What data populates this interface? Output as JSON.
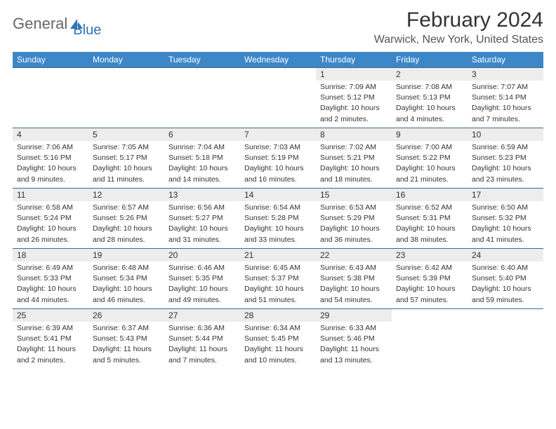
{
  "brand": {
    "part1": "General",
    "part2": "Blue"
  },
  "title": "February 2024",
  "location": "Warwick, New York, United States",
  "colors": {
    "header_bg": "#3d87c9",
    "header_text": "#ffffff",
    "daynum_bg": "#ededed",
    "row_border": "#3d6a94",
    "text": "#333333",
    "logo_gray": "#666666",
    "logo_blue": "#2f72b8",
    "background": "#ffffff"
  },
  "fonts": {
    "title_size_pt": 22,
    "location_size_pt": 12,
    "header_size_pt": 9,
    "daynum_size_pt": 9,
    "info_size_pt": 8
  },
  "weekdays": [
    "Sunday",
    "Monday",
    "Tuesday",
    "Wednesday",
    "Thursday",
    "Friday",
    "Saturday"
  ],
  "weeks": [
    [
      {
        "day": "",
        "sunrise": "",
        "sunset": "",
        "daylight1": "",
        "daylight2": ""
      },
      {
        "day": "",
        "sunrise": "",
        "sunset": "",
        "daylight1": "",
        "daylight2": ""
      },
      {
        "day": "",
        "sunrise": "",
        "sunset": "",
        "daylight1": "",
        "daylight2": ""
      },
      {
        "day": "",
        "sunrise": "",
        "sunset": "",
        "daylight1": "",
        "daylight2": ""
      },
      {
        "day": "1",
        "sunrise": "Sunrise: 7:09 AM",
        "sunset": "Sunset: 5:12 PM",
        "daylight1": "Daylight: 10 hours",
        "daylight2": "and 2 minutes."
      },
      {
        "day": "2",
        "sunrise": "Sunrise: 7:08 AM",
        "sunset": "Sunset: 5:13 PM",
        "daylight1": "Daylight: 10 hours",
        "daylight2": "and 4 minutes."
      },
      {
        "day": "3",
        "sunrise": "Sunrise: 7:07 AM",
        "sunset": "Sunset: 5:14 PM",
        "daylight1": "Daylight: 10 hours",
        "daylight2": "and 7 minutes."
      }
    ],
    [
      {
        "day": "4",
        "sunrise": "Sunrise: 7:06 AM",
        "sunset": "Sunset: 5:16 PM",
        "daylight1": "Daylight: 10 hours",
        "daylight2": "and 9 minutes."
      },
      {
        "day": "5",
        "sunrise": "Sunrise: 7:05 AM",
        "sunset": "Sunset: 5:17 PM",
        "daylight1": "Daylight: 10 hours",
        "daylight2": "and 11 minutes."
      },
      {
        "day": "6",
        "sunrise": "Sunrise: 7:04 AM",
        "sunset": "Sunset: 5:18 PM",
        "daylight1": "Daylight: 10 hours",
        "daylight2": "and 14 minutes."
      },
      {
        "day": "7",
        "sunrise": "Sunrise: 7:03 AM",
        "sunset": "Sunset: 5:19 PM",
        "daylight1": "Daylight: 10 hours",
        "daylight2": "and 16 minutes."
      },
      {
        "day": "8",
        "sunrise": "Sunrise: 7:02 AM",
        "sunset": "Sunset: 5:21 PM",
        "daylight1": "Daylight: 10 hours",
        "daylight2": "and 18 minutes."
      },
      {
        "day": "9",
        "sunrise": "Sunrise: 7:00 AM",
        "sunset": "Sunset: 5:22 PM",
        "daylight1": "Daylight: 10 hours",
        "daylight2": "and 21 minutes."
      },
      {
        "day": "10",
        "sunrise": "Sunrise: 6:59 AM",
        "sunset": "Sunset: 5:23 PM",
        "daylight1": "Daylight: 10 hours",
        "daylight2": "and 23 minutes."
      }
    ],
    [
      {
        "day": "11",
        "sunrise": "Sunrise: 6:58 AM",
        "sunset": "Sunset: 5:24 PM",
        "daylight1": "Daylight: 10 hours",
        "daylight2": "and 26 minutes."
      },
      {
        "day": "12",
        "sunrise": "Sunrise: 6:57 AM",
        "sunset": "Sunset: 5:26 PM",
        "daylight1": "Daylight: 10 hours",
        "daylight2": "and 28 minutes."
      },
      {
        "day": "13",
        "sunrise": "Sunrise: 6:56 AM",
        "sunset": "Sunset: 5:27 PM",
        "daylight1": "Daylight: 10 hours",
        "daylight2": "and 31 minutes."
      },
      {
        "day": "14",
        "sunrise": "Sunrise: 6:54 AM",
        "sunset": "Sunset: 5:28 PM",
        "daylight1": "Daylight: 10 hours",
        "daylight2": "and 33 minutes."
      },
      {
        "day": "15",
        "sunrise": "Sunrise: 6:53 AM",
        "sunset": "Sunset: 5:29 PM",
        "daylight1": "Daylight: 10 hours",
        "daylight2": "and 36 minutes."
      },
      {
        "day": "16",
        "sunrise": "Sunrise: 6:52 AM",
        "sunset": "Sunset: 5:31 PM",
        "daylight1": "Daylight: 10 hours",
        "daylight2": "and 38 minutes."
      },
      {
        "day": "17",
        "sunrise": "Sunrise: 6:50 AM",
        "sunset": "Sunset: 5:32 PM",
        "daylight1": "Daylight: 10 hours",
        "daylight2": "and 41 minutes."
      }
    ],
    [
      {
        "day": "18",
        "sunrise": "Sunrise: 6:49 AM",
        "sunset": "Sunset: 5:33 PM",
        "daylight1": "Daylight: 10 hours",
        "daylight2": "and 44 minutes."
      },
      {
        "day": "19",
        "sunrise": "Sunrise: 6:48 AM",
        "sunset": "Sunset: 5:34 PM",
        "daylight1": "Daylight: 10 hours",
        "daylight2": "and 46 minutes."
      },
      {
        "day": "20",
        "sunrise": "Sunrise: 6:46 AM",
        "sunset": "Sunset: 5:35 PM",
        "daylight1": "Daylight: 10 hours",
        "daylight2": "and 49 minutes."
      },
      {
        "day": "21",
        "sunrise": "Sunrise: 6:45 AM",
        "sunset": "Sunset: 5:37 PM",
        "daylight1": "Daylight: 10 hours",
        "daylight2": "and 51 minutes."
      },
      {
        "day": "22",
        "sunrise": "Sunrise: 6:43 AM",
        "sunset": "Sunset: 5:38 PM",
        "daylight1": "Daylight: 10 hours",
        "daylight2": "and 54 minutes."
      },
      {
        "day": "23",
        "sunrise": "Sunrise: 6:42 AM",
        "sunset": "Sunset: 5:39 PM",
        "daylight1": "Daylight: 10 hours",
        "daylight2": "and 57 minutes."
      },
      {
        "day": "24",
        "sunrise": "Sunrise: 6:40 AM",
        "sunset": "Sunset: 5:40 PM",
        "daylight1": "Daylight: 10 hours",
        "daylight2": "and 59 minutes."
      }
    ],
    [
      {
        "day": "25",
        "sunrise": "Sunrise: 6:39 AM",
        "sunset": "Sunset: 5:41 PM",
        "daylight1": "Daylight: 11 hours",
        "daylight2": "and 2 minutes."
      },
      {
        "day": "26",
        "sunrise": "Sunrise: 6:37 AM",
        "sunset": "Sunset: 5:43 PM",
        "daylight1": "Daylight: 11 hours",
        "daylight2": "and 5 minutes."
      },
      {
        "day": "27",
        "sunrise": "Sunrise: 6:36 AM",
        "sunset": "Sunset: 5:44 PM",
        "daylight1": "Daylight: 11 hours",
        "daylight2": "and 7 minutes."
      },
      {
        "day": "28",
        "sunrise": "Sunrise: 6:34 AM",
        "sunset": "Sunset: 5:45 PM",
        "daylight1": "Daylight: 11 hours",
        "daylight2": "and 10 minutes."
      },
      {
        "day": "29",
        "sunrise": "Sunrise: 6:33 AM",
        "sunset": "Sunset: 5:46 PM",
        "daylight1": "Daylight: 11 hours",
        "daylight2": "and 13 minutes."
      },
      {
        "day": "",
        "sunrise": "",
        "sunset": "",
        "daylight1": "",
        "daylight2": ""
      },
      {
        "day": "",
        "sunrise": "",
        "sunset": "",
        "daylight1": "",
        "daylight2": ""
      }
    ]
  ]
}
